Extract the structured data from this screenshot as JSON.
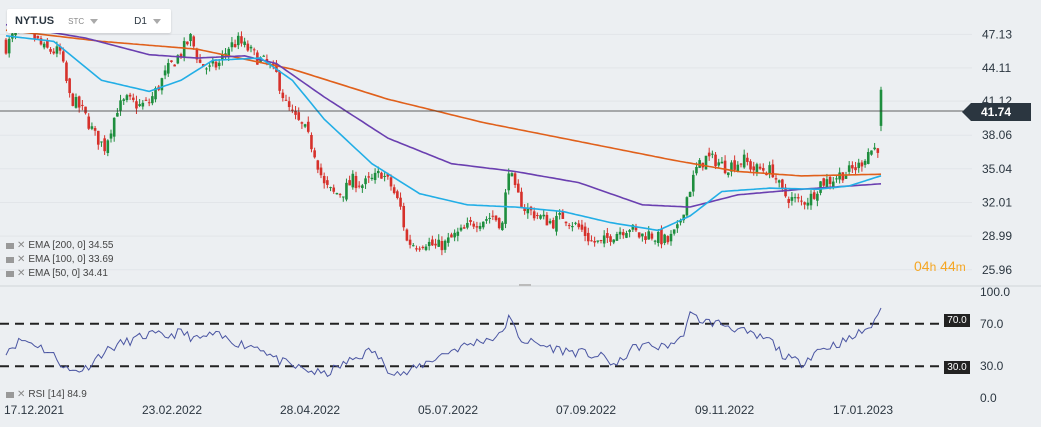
{
  "toolbar": {
    "symbol": "NYT.US",
    "symbol_type": "STC",
    "timeframe": "D1"
  },
  "price_axis": {
    "ticks": [
      "47.13",
      "44.11",
      "41.12",
      "38.06",
      "35.04",
      "32.01",
      "28.99",
      "25.96"
    ]
  },
  "rsi_axis": {
    "ticks": [
      "100.0",
      "70.0",
      "30.0",
      "0.0"
    ]
  },
  "date_axis": {
    "ticks": [
      "17.12.2021",
      "23.02.2022",
      "28.04.2022",
      "05.07.2022",
      "07.09.2022",
      "09.11.2022",
      "17.01.2023"
    ]
  },
  "last_price": "41.74",
  "countdown": {
    "hours": "04",
    "hours_unit": "h",
    "minutes": "44",
    "minutes_unit": "m"
  },
  "legend": {
    "ema200": "EMA [200, 0] 34.55",
    "ema100": "EMA [100, 0] 33.69",
    "ema50": "EMA [50, 0] 34.41",
    "rsi": "RSI [14] 84.9"
  },
  "rsi_levels": {
    "upper": "70.0",
    "lower": "30.0"
  },
  "colors": {
    "up": "#1e8e3e",
    "down": "#d6312b",
    "ema200": "#e0601b",
    "ema100": "#6a3fb0",
    "ema50": "#22aee6",
    "rsi": "#4a55a2",
    "price_tag_bg": "#2b3640",
    "countdown": "#f5a623"
  },
  "chart_data": {
    "type": "candlestick",
    "timeframe": "D1",
    "symbol": "NYT.US",
    "ylim": [
      24.5,
      49.5
    ],
    "rsi_ylim": [
      0,
      100
    ],
    "x_tick_labels": [
      "17.12.2021",
      "23.02.2022",
      "28.04.2022",
      "05.07.2022",
      "07.09.2022",
      "09.11.2022",
      "17.01.2023"
    ],
    "close_anchors": [
      [
        0,
        46.0
      ],
      [
        4,
        47.8
      ],
      [
        8,
        47.2
      ],
      [
        12,
        45.8
      ],
      [
        17,
        45.5
      ],
      [
        20,
        41.5
      ],
      [
        24,
        40.3
      ],
      [
        28,
        38.0
      ],
      [
        31,
        37.0
      ],
      [
        35,
        40.5
      ],
      [
        38,
        41.2
      ],
      [
        42,
        40.7
      ],
      [
        45,
        41.0
      ],
      [
        48,
        42.5
      ],
      [
        51,
        44.0
      ],
      [
        55,
        45.5
      ],
      [
        58,
        46.8
      ],
      [
        61,
        44.5
      ],
      [
        64,
        44.0
      ],
      [
        67,
        44.5
      ],
      [
        70,
        46.0
      ],
      [
        73,
        46.5
      ],
      [
        76,
        45.8
      ],
      [
        79,
        45.0
      ],
      [
        82,
        44.5
      ],
      [
        85,
        43.5
      ],
      [
        88,
        40.8
      ],
      [
        91,
        39.5
      ],
      [
        94,
        38.5
      ],
      [
        97,
        36.5
      ],
      [
        100,
        33.5
      ],
      [
        103,
        32.8
      ],
      [
        106,
        33.0
      ],
      [
        109,
        34.0
      ],
      [
        112,
        33.6
      ],
      [
        115,
        34.0
      ],
      [
        118,
        34.7
      ],
      [
        121,
        33.5
      ],
      [
        124,
        31.5
      ],
      [
        126,
        28.5
      ],
      [
        129,
        28.2
      ],
      [
        132,
        28.5
      ],
      [
        135,
        28.0
      ],
      [
        138,
        28.3
      ],
      [
        141,
        29.0
      ],
      [
        144,
        29.5
      ],
      [
        147,
        30.2
      ],
      [
        150,
        30.5
      ],
      [
        153,
        30.8
      ],
      [
        156,
        30.0
      ],
      [
        158,
        35.2
      ],
      [
        160,
        33.0
      ],
      [
        163,
        31.5
      ],
      [
        166,
        31.0
      ],
      [
        169,
        30.5
      ],
      [
        172,
        30.2
      ],
      [
        175,
        30.8
      ],
      [
        178,
        30.2
      ],
      [
        181,
        29.5
      ],
      [
        184,
        28.5
      ],
      [
        187,
        28.3
      ],
      [
        190,
        29.0
      ],
      [
        193,
        29.5
      ],
      [
        196,
        29.8
      ],
      [
        199,
        29.0
      ],
      [
        202,
        29.2
      ],
      [
        205,
        28.8
      ],
      [
        208,
        28.5
      ],
      [
        211,
        29.5
      ],
      [
        214,
        32.5
      ],
      [
        217,
        35.0
      ],
      [
        220,
        36.0
      ],
      [
        223,
        35.8
      ],
      [
        226,
        35.2
      ],
      [
        229,
        35.5
      ],
      [
        232,
        35.8
      ],
      [
        235,
        35.0
      ],
      [
        238,
        35.0
      ],
      [
        241,
        34.8
      ],
      [
        244,
        32.8
      ],
      [
        247,
        32.3
      ],
      [
        250,
        32.0
      ],
      [
        253,
        32.5
      ],
      [
        256,
        33.8
      ],
      [
        259,
        34.0
      ],
      [
        262,
        34.5
      ],
      [
        265,
        34.8
      ],
      [
        268,
        35.3
      ],
      [
        271,
        36.6
      ],
      [
        274,
        37.0
      ],
      [
        275,
        41.74
      ]
    ],
    "series": [
      {
        "name": "EMA [200, 0]",
        "last": 34.55,
        "values": [
          [
            0,
            47.5
          ],
          [
            30,
            46.5
          ],
          [
            60,
            45.8
          ],
          [
            90,
            44.0
          ],
          [
            120,
            41.3
          ],
          [
            150,
            39.2
          ],
          [
            180,
            37.5
          ],
          [
            210,
            35.8
          ],
          [
            230,
            34.8
          ],
          [
            250,
            34.4
          ],
          [
            275,
            34.55
          ]
        ]
      },
      {
        "name": "EMA [100, 0]",
        "last": 33.69,
        "values": [
          [
            0,
            48.0
          ],
          [
            25,
            46.8
          ],
          [
            45,
            45.3
          ],
          [
            60,
            45.0
          ],
          [
            75,
            45.2
          ],
          [
            85,
            44.5
          ],
          [
            100,
            41.5
          ],
          [
            120,
            37.8
          ],
          [
            140,
            35.5
          ],
          [
            160,
            34.8
          ],
          [
            180,
            33.8
          ],
          [
            200,
            31.8
          ],
          [
            215,
            31.6
          ],
          [
            230,
            32.7
          ],
          [
            250,
            33.2
          ],
          [
            275,
            33.69
          ]
        ]
      },
      {
        "name": "EMA [50, 0]",
        "last": 34.41,
        "values": [
          [
            0,
            47.0
          ],
          [
            15,
            46.5
          ],
          [
            30,
            43.0
          ],
          [
            45,
            42.0
          ],
          [
            55,
            43.0
          ],
          [
            65,
            44.8
          ],
          [
            80,
            45.0
          ],
          [
            90,
            43.0
          ],
          [
            100,
            39.5
          ],
          [
            115,
            35.5
          ],
          [
            130,
            32.8
          ],
          [
            145,
            31.8
          ],
          [
            160,
            31.6
          ],
          [
            175,
            31.2
          ],
          [
            190,
            30.2
          ],
          [
            205,
            29.5
          ],
          [
            215,
            30.8
          ],
          [
            225,
            33.0
          ],
          [
            240,
            33.3
          ],
          [
            255,
            33.2
          ],
          [
            265,
            33.5
          ],
          [
            275,
            34.41
          ]
        ]
      }
    ],
    "rsi": {
      "name": "RSI [14]",
      "last": 84.9,
      "upper": 70.0,
      "lower": 30.0,
      "values": [
        [
          0,
          45
        ],
        [
          5,
          55
        ],
        [
          10,
          50
        ],
        [
          15,
          40
        ],
        [
          20,
          25
        ],
        [
          25,
          28
        ],
        [
          30,
          42
        ],
        [
          35,
          50
        ],
        [
          40,
          55
        ],
        [
          45,
          60
        ],
        [
          50,
          58
        ],
        [
          55,
          62
        ],
        [
          60,
          55
        ],
        [
          65,
          60
        ],
        [
          70,
          55
        ],
        [
          75,
          50
        ],
        [
          80,
          48
        ],
        [
          85,
          36
        ],
        [
          90,
          30
        ],
        [
          95,
          26
        ],
        [
          100,
          22
        ],
        [
          105,
          30
        ],
        [
          110,
          38
        ],
        [
          115,
          45
        ],
        [
          120,
          28
        ],
        [
          125,
          22
        ],
        [
          130,
          30
        ],
        [
          135,
          38
        ],
        [
          140,
          45
        ],
        [
          145,
          50
        ],
        [
          150,
          55
        ],
        [
          155,
          58
        ],
        [
          158,
          75
        ],
        [
          162,
          55
        ],
        [
          168,
          50
        ],
        [
          175,
          45
        ],
        [
          182,
          42
        ],
        [
          188,
          38
        ],
        [
          192,
          30
        ],
        [
          196,
          45
        ],
        [
          200,
          50
        ],
        [
          206,
          48
        ],
        [
          212,
          55
        ],
        [
          215,
          78
        ],
        [
          220,
          72
        ],
        [
          225,
          70
        ],
        [
          230,
          65
        ],
        [
          235,
          58
        ],
        [
          240,
          55
        ],
        [
          245,
          38
        ],
        [
          250,
          33
        ],
        [
          255,
          45
        ],
        [
          260,
          50
        ],
        [
          265,
          55
        ],
        [
          270,
          65
        ],
        [
          273,
          70
        ],
        [
          275,
          84.9
        ]
      ]
    }
  }
}
